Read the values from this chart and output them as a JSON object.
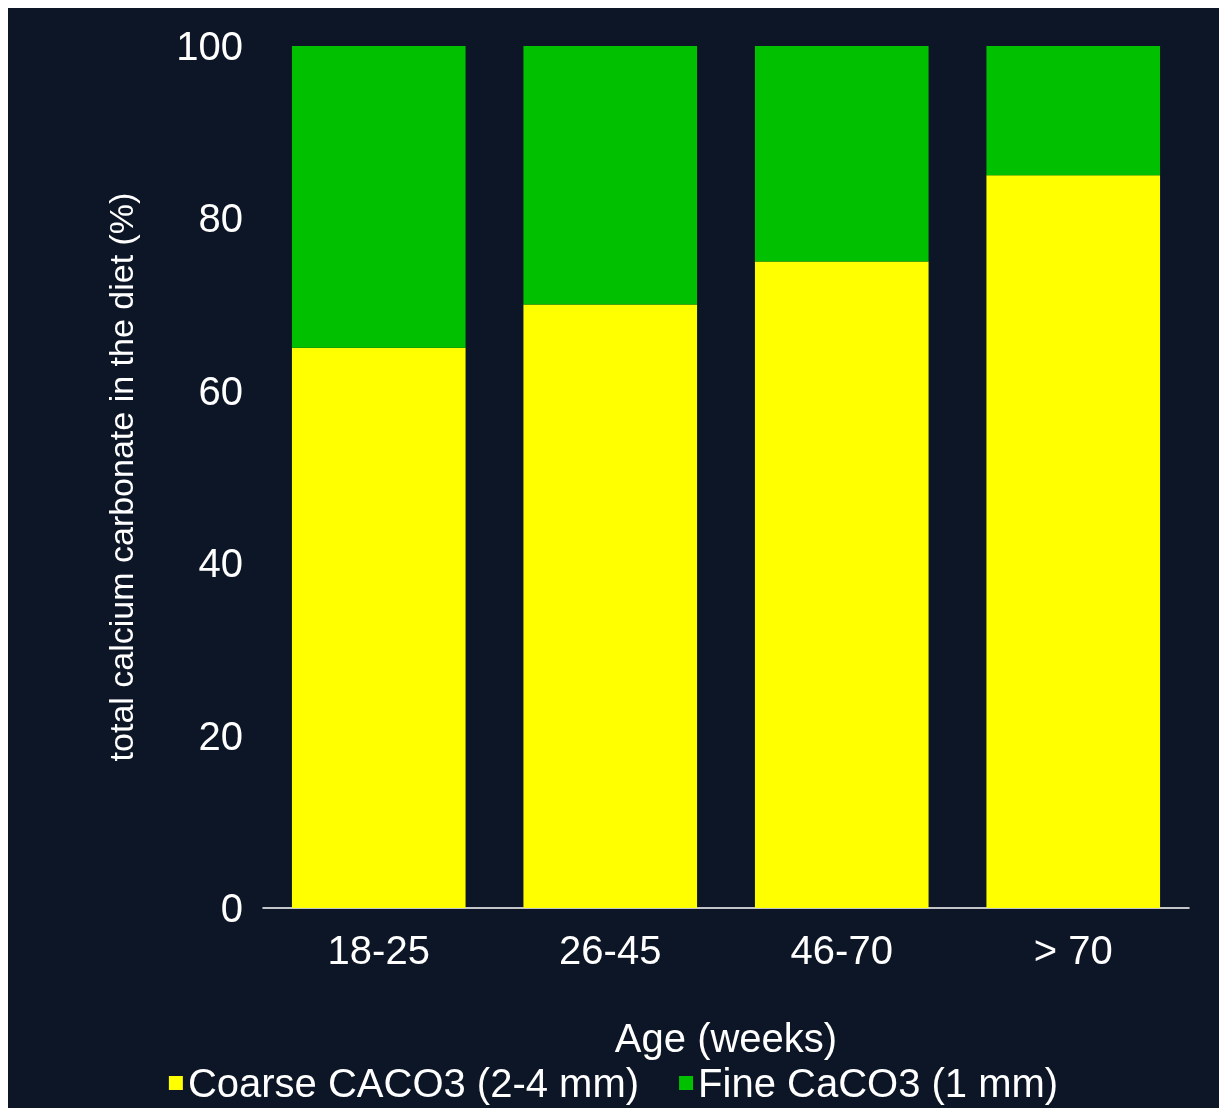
{
  "chart_data": {
    "type": "bar",
    "stacked": true,
    "xlabel": "Age (weeks)",
    "ylabel": "total calcium carbonate in the diet (%)",
    "categories": [
      "18-25",
      "26-45",
      "46-70",
      "> 70"
    ],
    "series": [
      {
        "name": "Coarse CACO3 (2-4 mm)",
        "color": "#ffff00",
        "values": [
          65,
          70,
          75,
          85
        ]
      },
      {
        "name": "Fine CaCO3 (1 mm)",
        "color": "#00c000",
        "values": [
          35,
          30,
          25,
          15
        ]
      }
    ],
    "ylim": [
      0,
      100
    ],
    "yticks": [
      0,
      20,
      40,
      60,
      80,
      100
    ],
    "legend": "bottom"
  }
}
